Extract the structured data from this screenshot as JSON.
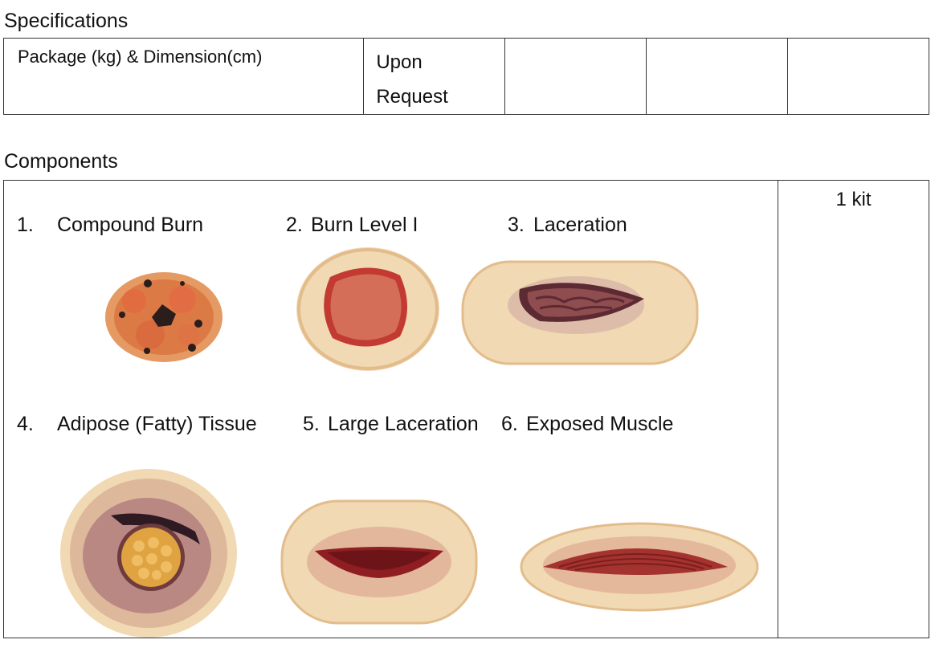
{
  "specifications": {
    "title": "Specifications",
    "package_label": "Package (kg) & Dimension(cm)",
    "package_value": "Upon Request"
  },
  "components": {
    "title": "Components",
    "quantity": "1 kit",
    "items": [
      {
        "number": "1.",
        "label": "Compound Burn",
        "icon": "compound-burn-image"
      },
      {
        "number": "2.",
        "label": "Burn Level I",
        "icon": "burn-level-1-image"
      },
      {
        "number": "3.",
        "label": "Laceration",
        "icon": "laceration-image"
      },
      {
        "number": "4.",
        "label": "Adipose (Fatty) Tissue",
        "icon": "adipose-tissue-image"
      },
      {
        "number": "5.",
        "label": "Large Laceration",
        "icon": "large-laceration-image"
      },
      {
        "number": "6.",
        "label": "Exposed Muscle",
        "icon": "exposed-muscle-image"
      }
    ]
  },
  "colors": {
    "skin": "#f1d9b3",
    "skin_edge": "#e3bc8c",
    "blood": "#8e1e22",
    "bruise": "#7b3a4e",
    "burn_orange": "#dc7a45",
    "fat": "#e0a341"
  }
}
